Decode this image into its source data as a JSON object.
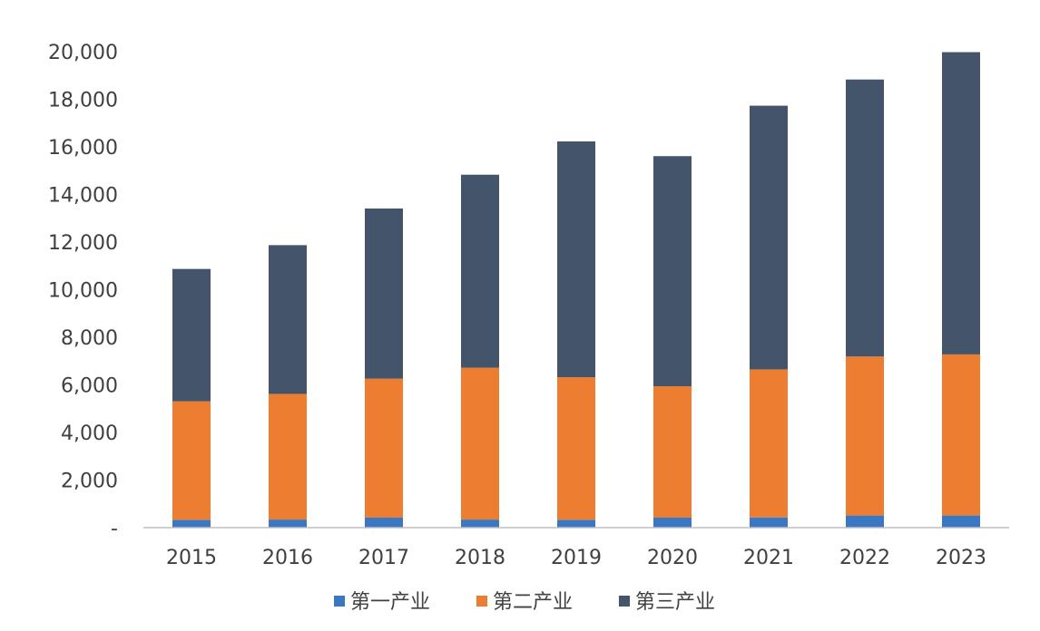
{
  "chart_data": {
    "type": "bar",
    "stacked": true,
    "title": "",
    "xlabel": "",
    "ylabel": "",
    "categories": [
      "2015",
      "2016",
      "2017",
      "2018",
      "2019",
      "2020",
      "2021",
      "2022",
      "2023"
    ],
    "series": [
      {
        "name": "第一产业",
        "color": "#3a78c4",
        "values": [
          330,
          340,
          420,
          340,
          330,
          420,
          430,
          510,
          510
        ]
      },
      {
        "name": "第二产业",
        "color": "#ed7d31",
        "values": [
          4980,
          5280,
          5840,
          6380,
          5990,
          5520,
          6220,
          6680,
          6770
        ]
      },
      {
        "name": "第三产业",
        "color": "#44546a",
        "values": [
          5560,
          6250,
          7150,
          8110,
          9910,
          9670,
          11080,
          11640,
          12700
        ]
      }
    ],
    "ylim": [
      0,
      20000
    ],
    "yticks": [
      0,
      2000,
      4000,
      6000,
      8000,
      10000,
      12000,
      14000,
      16000,
      18000,
      20000
    ],
    "ytick_labels": [
      "-",
      "2,000",
      "4,000",
      "6,000",
      "8,000",
      "10,000",
      "12,000",
      "14,000",
      "16,000",
      "18,000",
      "20,000"
    ],
    "grid": false,
    "legend_position": "bottom"
  }
}
